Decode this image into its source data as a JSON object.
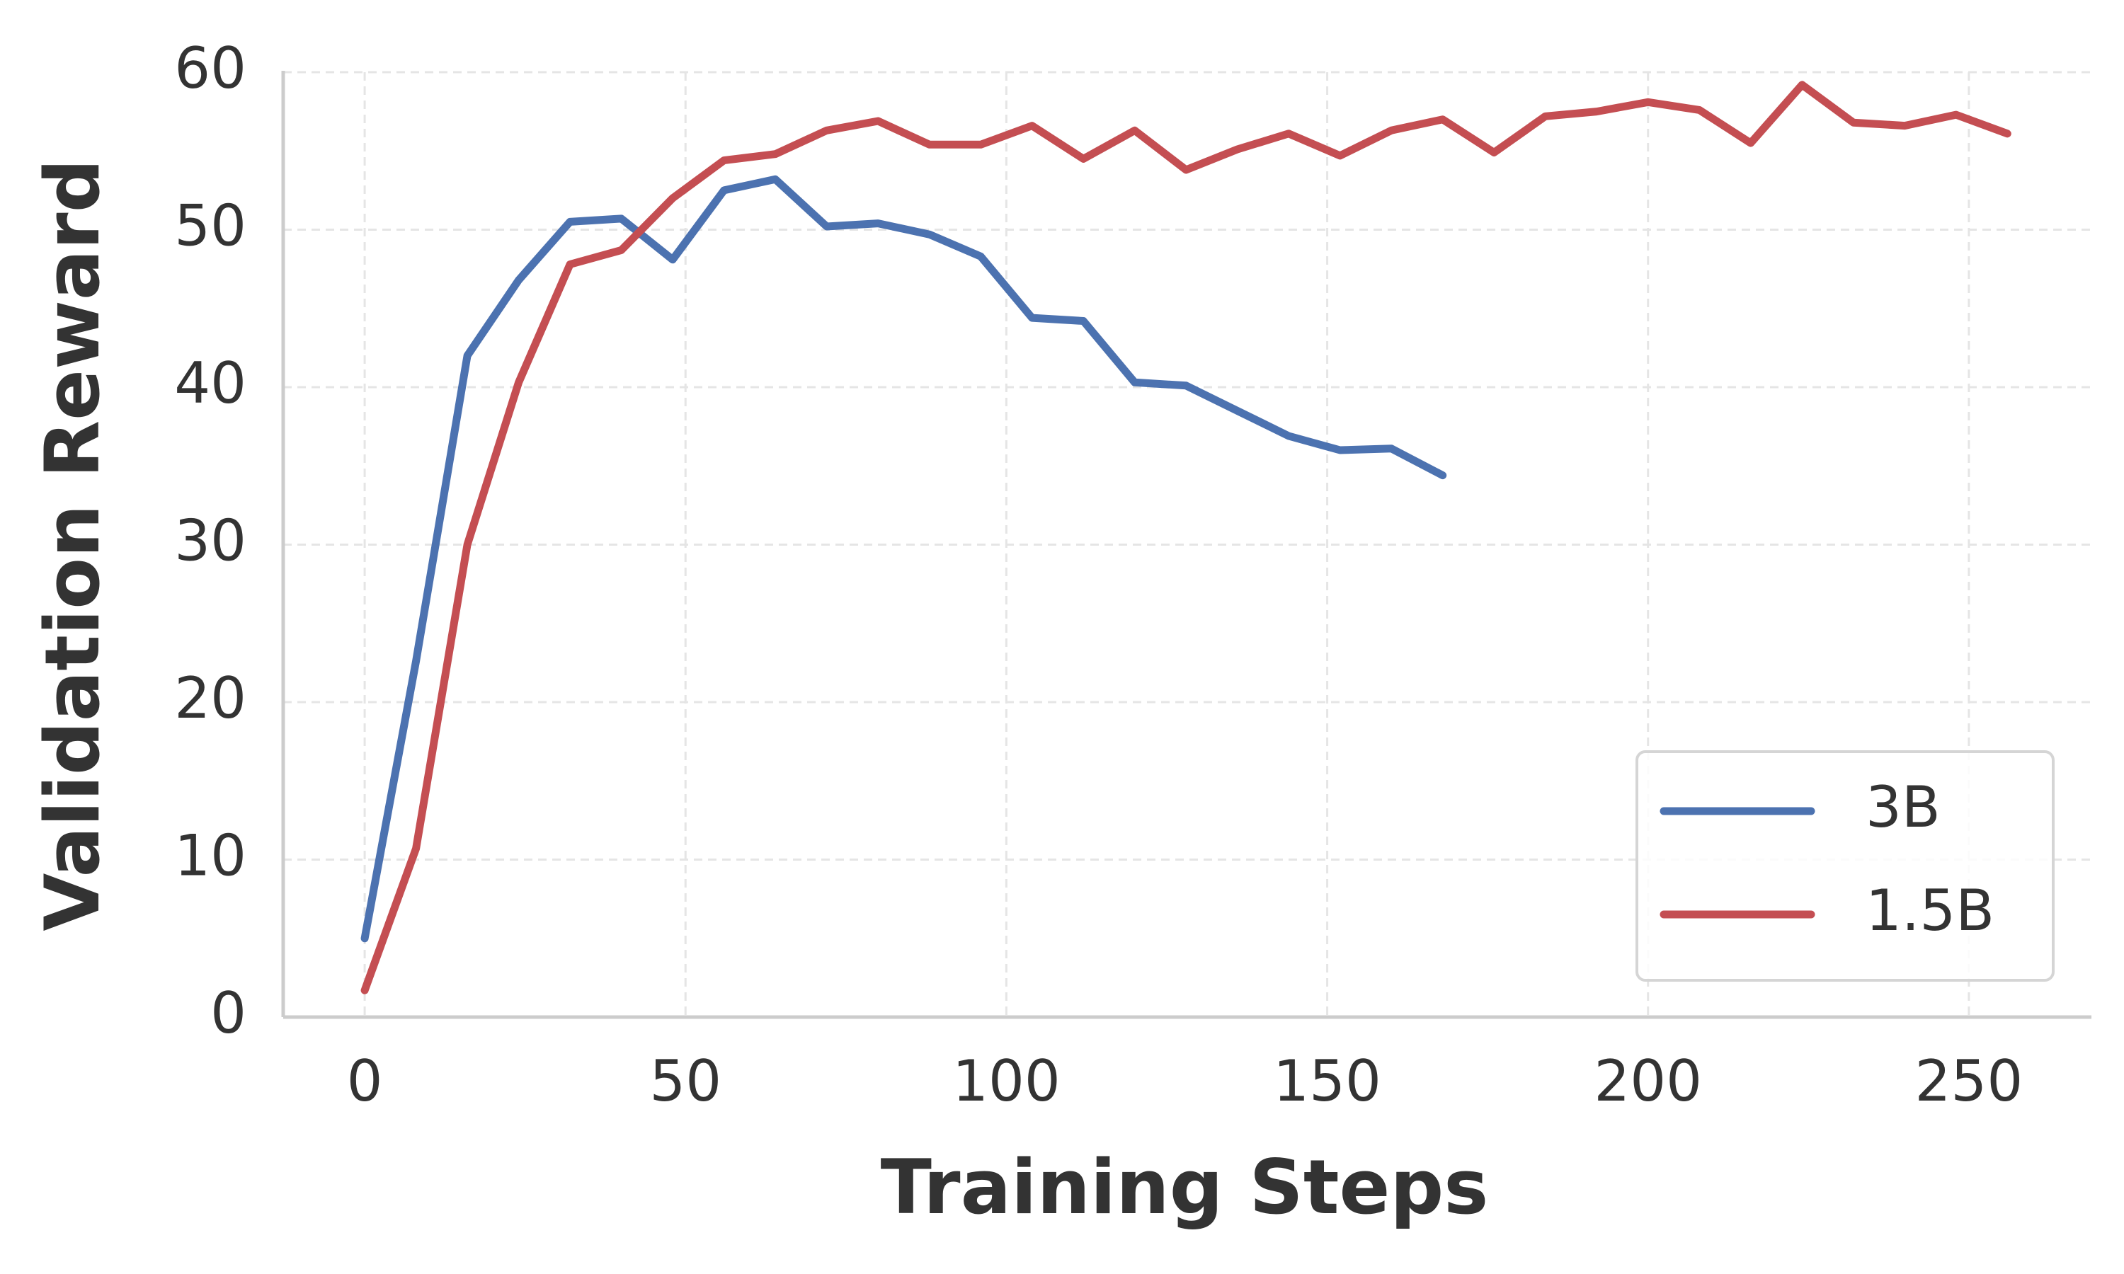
{
  "chart_data": {
    "type": "line",
    "xlabel": "Training Steps",
    "ylabel": "Validation Reward",
    "x": [
      0,
      8,
      16,
      24,
      32,
      40,
      48,
      56,
      64,
      72,
      80,
      88,
      96,
      104,
      112,
      120,
      128,
      136,
      144,
      152,
      160,
      168,
      176,
      184,
      192,
      200,
      208,
      216,
      224,
      232,
      240,
      248,
      256
    ],
    "series": [
      {
        "name": "3B",
        "color": "#4c72b0",
        "values": [
          5.0,
          22.6,
          42.0,
          46.8,
          50.5,
          50.7,
          48.1,
          52.5,
          53.2,
          50.2,
          50.4,
          49.7,
          48.3,
          44.4,
          44.2,
          40.3,
          40.1,
          38.5,
          36.9,
          36.0,
          36.1,
          34.4,
          null,
          null,
          null,
          null,
          null,
          null,
          null,
          null,
          null,
          null,
          null
        ]
      },
      {
        "name": "1.5B",
        "color": "#c44e52",
        "values": [
          1.7,
          10.7,
          30.0,
          40.3,
          47.8,
          48.7,
          52.0,
          54.4,
          54.8,
          56.3,
          56.9,
          55.4,
          55.4,
          56.6,
          54.5,
          56.3,
          53.8,
          55.1,
          56.1,
          54.7,
          56.3,
          57.0,
          54.9,
          57.2,
          57.5,
          58.1,
          57.6,
          55.5,
          59.2,
          56.8,
          56.6,
          57.3,
          56.1
        ]
      }
    ],
    "xlim": [
      -12.7,
      269.1
    ],
    "xticks": [
      0,
      50,
      100,
      150,
      200,
      250
    ],
    "ylim": [
      0,
      60
    ],
    "yticks": [
      0,
      10,
      20,
      30,
      40,
      50,
      60
    ],
    "grid": true,
    "legend": "lower right"
  }
}
